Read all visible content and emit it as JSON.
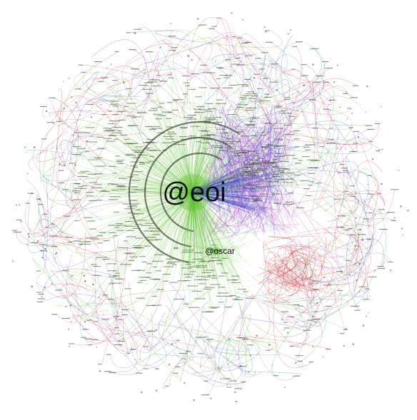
{
  "graph": {
    "hubs": [
      {
        "id": "eoi",
        "label": "@eoi",
        "color": "#5cbf2a"
      },
      {
        "id": "oscar",
        "label": "@oscar",
        "color": "#6fc23a"
      }
    ],
    "edge_colors": {
      "main_cluster": "#5cbf2a",
      "magenta": "#b040c8",
      "pink": "#e0407a",
      "blue": "#3a4ac8",
      "red": "#d43030",
      "olive": "#6b8e23",
      "teal": "#2a9a8a"
    },
    "background": "#ffffff"
  }
}
